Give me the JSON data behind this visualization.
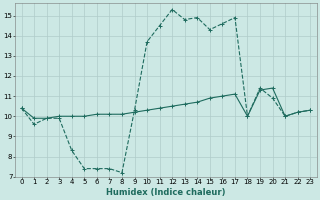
{
  "line1_x": [
    0,
    1,
    2,
    3,
    4,
    5,
    6,
    7,
    8,
    9,
    10,
    11,
    12,
    13,
    14,
    15,
    16,
    17,
    18,
    19,
    20,
    21,
    22,
    23
  ],
  "line1_y": [
    10.4,
    9.6,
    9.9,
    9.9,
    8.3,
    7.4,
    7.4,
    7.4,
    7.2,
    10.3,
    13.7,
    14.5,
    15.3,
    14.8,
    14.9,
    14.3,
    14.6,
    14.9,
    10.0,
    11.4,
    10.9,
    10.0,
    10.2,
    10.3
  ],
  "line2_x": [
    0,
    1,
    2,
    3,
    4,
    5,
    6,
    7,
    8,
    9,
    10,
    11,
    12,
    13,
    14,
    15,
    16,
    17,
    18,
    19,
    20,
    21,
    22,
    23
  ],
  "line2_y": [
    10.4,
    9.9,
    9.9,
    10.0,
    10.0,
    10.0,
    10.1,
    10.1,
    10.1,
    10.2,
    10.3,
    10.4,
    10.5,
    10.6,
    10.7,
    10.9,
    11.0,
    11.1,
    10.0,
    11.3,
    11.4,
    10.0,
    10.2,
    10.3
  ],
  "line_color": "#1e6b5e",
  "bg_color": "#cce8e4",
  "grid_color": "#b0ccca",
  "xlabel": "Humidex (Indice chaleur)",
  "ylim": [
    7,
    15.6
  ],
  "xlim": [
    -0.5,
    23.5
  ],
  "yticks": [
    7,
    8,
    9,
    10,
    11,
    12,
    13,
    14,
    15
  ],
  "xticks": [
    0,
    1,
    2,
    3,
    4,
    5,
    6,
    7,
    8,
    9,
    10,
    11,
    12,
    13,
    14,
    15,
    16,
    17,
    18,
    19,
    20,
    21,
    22,
    23
  ],
  "xlabel_fontsize": 6.0,
  "tick_fontsize": 5.0,
  "linewidth": 0.8,
  "markersize": 2.5
}
